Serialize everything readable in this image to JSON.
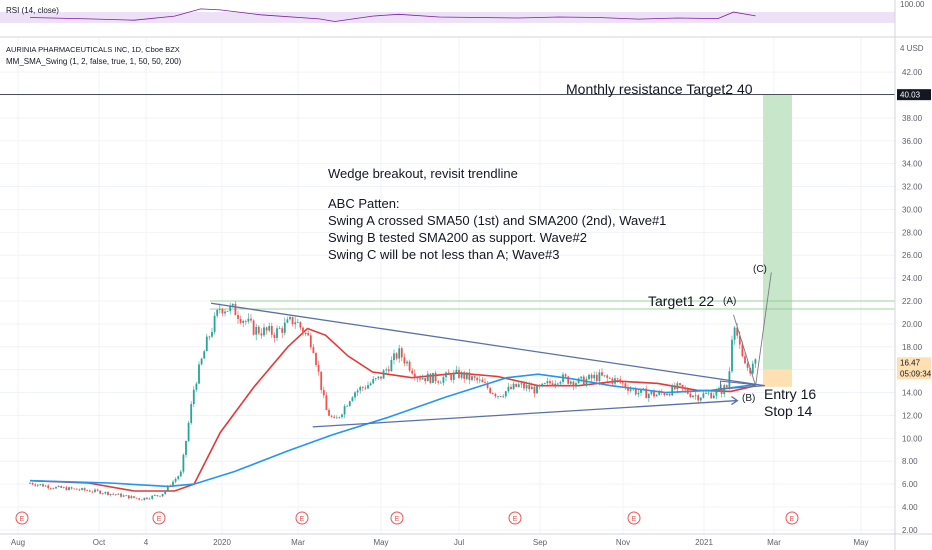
{
  "rsi_panel": {
    "legend": "RSI (14, close)",
    "ticks": [
      "100.00"
    ]
  },
  "price_panel": {
    "title_legend": "AURINIA PHARMACEUTICALS INC, 1D, Cboe BZX",
    "indicator_legend": "MM_SMA_Swing (1, 2, false, true, 1, 50, 50, 200)",
    "currency_tick": "4  USD"
  },
  "price_badges": {
    "resistance": "40.03",
    "last_price": "16.47",
    "countdown": "05:09:34"
  },
  "annotations": {
    "resistance_label": "Monthly resistance Target2 40",
    "commentary": [
      "Wedge breakout, revisit trendline",
      "",
      "ABC Patten:",
      "Swing A crossed SMA50 (1st) and SMA200 (2nd), Wave#1",
      "Swing B tested SMA200 as support. Wave#2",
      "Swing C will be not less than A; Wave#3"
    ],
    "target1": "Target1 22",
    "wave_a": "(A)",
    "wave_b": "(B)",
    "wave_c": "(C)",
    "entry": "Entry 16",
    "stop": "Stop 14"
  },
  "earnings_marker": "E",
  "colors": {
    "rsi_line": "#7b1fa2",
    "rsi_band": "#ede0f7",
    "sma50": "#e53935",
    "sma200": "#2196f3",
    "up_candle": "#26a69a",
    "down_candle": "#ef5350",
    "trendline": "#5b6fa8",
    "target_zone": "#c8e6c9",
    "stop_zone": "#ffe0b2",
    "target_line": "#81c784"
  },
  "chart_data": {
    "type": "candlestick",
    "y_axis": {
      "ticks": [
        "42.00",
        "40.00",
        "38.00",
        "36.00",
        "34.00",
        "32.00",
        "30.00",
        "28.00",
        "26.00",
        "24.00",
        "22.00",
        "20.00",
        "18.00",
        "16.00",
        "14.00",
        "12.00",
        "10.00",
        "8.00",
        "6.00",
        "4.00",
        "2.00"
      ],
      "ylim": [
        2,
        44
      ]
    },
    "x_axis": {
      "ticks": [
        "Aug",
        "Oct",
        "4",
        "2020",
        "Mar",
        "May",
        "Jul",
        "Sep",
        "Nov",
        "2021",
        "Mar",
        "May"
      ]
    },
    "price_path": [
      [
        "2019-08-01",
        6.1
      ],
      [
        "2019-08-20",
        5.7
      ],
      [
        "2019-09-10",
        5.5
      ],
      [
        "2019-09-25",
        5.3
      ],
      [
        "2019-10-10",
        5.0
      ],
      [
        "2019-10-25",
        4.7
      ],
      [
        "2019-11-10",
        5.1
      ],
      [
        "2019-11-25",
        7.0
      ],
      [
        "2019-12-05",
        14.5
      ],
      [
        "2019-12-15",
        18.5
      ],
      [
        "2019-12-25",
        21.5
      ],
      [
        "2020-01-05",
        21.2
      ],
      [
        "2020-01-20",
        19.5
      ],
      [
        "2020-02-05",
        19.2
      ],
      [
        "2020-02-20",
        20.4
      ],
      [
        "2020-03-05",
        18.3
      ],
      [
        "2020-03-15",
        12.5
      ],
      [
        "2020-03-22",
        11.4
      ],
      [
        "2020-04-05",
        14.0
      ],
      [
        "2020-04-25",
        15.2
      ],
      [
        "2020-05-10",
        17.5
      ],
      [
        "2020-05-25",
        15.4
      ],
      [
        "2020-06-10",
        15.2
      ],
      [
        "2020-06-25",
        15.6
      ],
      [
        "2020-07-10",
        15.0
      ],
      [
        "2020-07-25",
        13.8
      ],
      [
        "2020-08-10",
        14.6
      ],
      [
        "2020-08-25",
        14.2
      ],
      [
        "2020-09-10",
        15.3
      ],
      [
        "2020-09-25",
        14.9
      ],
      [
        "2020-10-10",
        15.4
      ],
      [
        "2020-10-25",
        15.0
      ],
      [
        "2020-11-10",
        14.0
      ],
      [
        "2020-11-25",
        13.8
      ],
      [
        "2020-12-10",
        14.4
      ],
      [
        "2020-12-25",
        13.7
      ],
      [
        "2021-01-10",
        14.0
      ],
      [
        "2021-01-18",
        14.6
      ],
      [
        "2021-01-22",
        20.8
      ],
      [
        "2021-01-28",
        17.0
      ],
      [
        "2021-02-03",
        16.0
      ],
      [
        "2021-02-08",
        16.47
      ]
    ],
    "series": [
      {
        "name": "SMA50",
        "values": [
          [
            "2019-08-01",
            6.3
          ],
          [
            "2019-09-15",
            6.1
          ],
          [
            "2019-10-20",
            5.4
          ],
          [
            "2019-11-20",
            5.4
          ],
          [
            "2019-12-05",
            6.0
          ],
          [
            "2019-12-25",
            10.5
          ],
          [
            "2020-01-20",
            14.5
          ],
          [
            "2020-02-15",
            18.0
          ],
          [
            "2020-03-01",
            19.6
          ],
          [
            "2020-03-15",
            19.0
          ],
          [
            "2020-04-01",
            17.2
          ],
          [
            "2020-04-20",
            15.8
          ],
          [
            "2020-05-20",
            15.3
          ],
          [
            "2020-06-25",
            15.7
          ],
          [
            "2020-07-25",
            15.4
          ],
          [
            "2020-08-25",
            14.6
          ],
          [
            "2020-09-25",
            14.6
          ],
          [
            "2020-10-25",
            15.0
          ],
          [
            "2020-11-25",
            14.8
          ],
          [
            "2020-12-25",
            14.2
          ],
          [
            "2021-01-20",
            14.1
          ],
          [
            "2021-02-08",
            14.6
          ]
        ]
      },
      {
        "name": "SMA200",
        "values": [
          [
            "2019-08-01",
            6.3
          ],
          [
            "2019-10-01",
            6.1
          ],
          [
            "2019-11-15",
            5.8
          ],
          [
            "2019-12-05",
            6.0
          ],
          [
            "2020-01-05",
            7.1
          ],
          [
            "2020-02-15",
            8.9
          ],
          [
            "2020-03-20",
            10.3
          ],
          [
            "2020-05-01",
            11.8
          ],
          [
            "2020-06-15",
            13.6
          ],
          [
            "2020-08-01",
            15.3
          ],
          [
            "2020-08-25",
            15.6
          ],
          [
            "2020-09-20",
            15.2
          ],
          [
            "2020-10-20",
            14.6
          ],
          [
            "2020-12-01",
            14.0
          ],
          [
            "2021-01-05",
            14.2
          ],
          [
            "2021-02-08",
            14.7
          ]
        ]
      }
    ],
    "rsi": [
      [
        "2019-08-01",
        50
      ],
      [
        "2019-09-15",
        45
      ],
      [
        "2019-10-20",
        40
      ],
      [
        "2019-11-20",
        55
      ],
      [
        "2019-12-10",
        82
      ],
      [
        "2019-12-25",
        78
      ],
      [
        "2020-01-25",
        60
      ],
      [
        "2020-03-10",
        45
      ],
      [
        "2020-03-22",
        35
      ],
      [
        "2020-04-20",
        55
      ],
      [
        "2020-05-10",
        62
      ],
      [
        "2020-06-10",
        52
      ],
      [
        "2020-07-10",
        50
      ],
      [
        "2020-08-10",
        48
      ],
      [
        "2020-09-10",
        52
      ],
      [
        "2020-10-10",
        50
      ],
      [
        "2020-11-10",
        44
      ],
      [
        "2020-12-10",
        48
      ],
      [
        "2021-01-10",
        46
      ],
      [
        "2021-01-22",
        70
      ],
      [
        "2021-02-08",
        56
      ]
    ],
    "upper_trendline": [
      [
        "2019-12-18",
        21.8
      ],
      [
        "2021-02-15",
        14.6
      ]
    ],
    "lower_trendline": [
      [
        "2020-03-05",
        11.0
      ],
      [
        "2021-01-25",
        13.3
      ]
    ],
    "horizontal_levels": [
      40.03,
      22.0,
      21.3
    ],
    "target_zone": [
      16.0,
      40.03
    ],
    "stop_zone": [
      14.5,
      16.0
    ],
    "projection": [
      [
        "2021-01-22",
        20.8
      ],
      [
        "2021-02-08",
        14.6
      ],
      [
        "2021-02-20",
        24.5
      ]
    ]
  }
}
